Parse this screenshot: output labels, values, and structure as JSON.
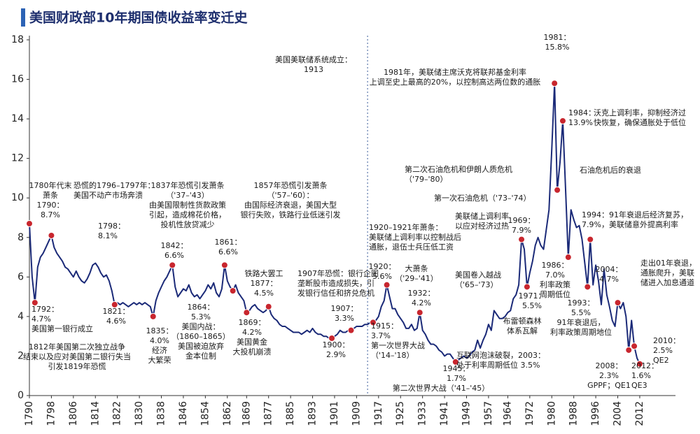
{
  "chart_data": {
    "type": "line",
    "title": "美国财政部10年期国债收益率变迁史",
    "color": "#1b2a78",
    "marker_color": "#c8262e",
    "xlim": [
      1790,
      2025
    ],
    "ylim": [
      0,
      18
    ],
    "yticks": [
      0,
      2,
      4,
      6,
      8,
      10,
      12,
      14,
      16,
      18
    ],
    "xticks": [
      1790,
      1798,
      1806,
      1814,
      1822,
      1830,
      1838,
      1846,
      1854,
      1862,
      1869,
      1877,
      1885,
      1893,
      1901,
      1909,
      1917,
      1925,
      1933,
      1941,
      1949,
      1957,
      1964,
      1972,
      1980,
      1988,
      1996,
      2004,
      2012
    ],
    "x": [
      1790,
      1791,
      1792,
      1793,
      1794,
      1795,
      1796,
      1797,
      1798,
      1799,
      1800,
      1801,
      1802,
      1803,
      1804,
      1805,
      1806,
      1807,
      1808,
      1809,
      1810,
      1811,
      1812,
      1813,
      1814,
      1815,
      1816,
      1817,
      1818,
      1819,
      1820,
      1821,
      1822,
      1823,
      1824,
      1825,
      1826,
      1827,
      1828,
      1829,
      1830,
      1831,
      1832,
      1833,
      1834,
      1835,
      1836,
      1837,
      1838,
      1839,
      1840,
      1841,
      1842,
      1843,
      1844,
      1845,
      1846,
      1847,
      1848,
      1849,
      1850,
      1851,
      1852,
      1853,
      1854,
      1855,
      1856,
      1857,
      1858,
      1859,
      1860,
      1861,
      1862,
      1863,
      1864,
      1865,
      1866,
      1867,
      1868,
      1869,
      1870,
      1871,
      1872,
      1873,
      1874,
      1875,
      1876,
      1877,
      1878,
      1879,
      1880,
      1881,
      1882,
      1883,
      1884,
      1885,
      1886,
      1887,
      1888,
      1889,
      1890,
      1891,
      1892,
      1893,
      1894,
      1895,
      1896,
      1897,
      1898,
      1899,
      1900,
      1901,
      1902,
      1903,
      1904,
      1905,
      1906,
      1907,
      1908,
      1909,
      1910,
      1911,
      1912,
      1913,
      1914,
      1915,
      1916,
      1917,
      1918,
      1919,
      1920,
      1921,
      1922,
      1923,
      1924,
      1925,
      1926,
      1927,
      1928,
      1929,
      1930,
      1931,
      1932,
      1933,
      1934,
      1935,
      1936,
      1937,
      1938,
      1939,
      1940,
      1941,
      1942,
      1943,
      1944,
      1945,
      1946,
      1947,
      1948,
      1949,
      1950,
      1951,
      1952,
      1953,
      1954,
      1955,
      1956,
      1957,
      1958,
      1959,
      1960,
      1961,
      1962,
      1963,
      1964,
      1965,
      1966,
      1967,
      1968,
      1969,
      1970,
      1971,
      1972,
      1973,
      1974,
      1975,
      1976,
      1977,
      1978,
      1979,
      1980,
      1981,
      1982,
      1983,
      1984,
      1985,
      1986,
      1987,
      1988,
      1989,
      1990,
      1991,
      1992,
      1993,
      1994,
      1995,
      1996,
      1997,
      1998,
      1999,
      2000,
      2001,
      2002,
      2003,
      2004,
      2005,
      2006,
      2007,
      2008,
      2009,
      2010,
      2011,
      2012
    ],
    "values": [
      8.7,
      6.0,
      4.7,
      6.5,
      7.0,
      7.2,
      7.5,
      7.8,
      8.1,
      7.5,
      7.2,
      7.0,
      6.8,
      6.5,
      6.4,
      6.2,
      6.0,
      6.3,
      6.0,
      5.8,
      5.7,
      5.9,
      6.2,
      6.6,
      6.7,
      6.5,
      6.2,
      6.0,
      6.1,
      5.8,
      5.3,
      4.6,
      4.7,
      4.6,
      4.7,
      4.6,
      4.5,
      4.6,
      4.7,
      4.6,
      4.7,
      4.6,
      4.7,
      4.6,
      4.5,
      4.0,
      4.8,
      5.2,
      5.5,
      5.8,
      6.0,
      6.3,
      6.6,
      5.5,
      5.0,
      5.2,
      5.4,
      5.3,
      5.6,
      5.2,
      5.0,
      5.1,
      4.9,
      5.1,
      5.3,
      5.6,
      5.4,
      5.7,
      5.2,
      5.0,
      5.4,
      6.6,
      5.8,
      5.5,
      5.3,
      5.6,
      5.2,
      5.0,
      4.8,
      4.2,
      4.3,
      4.5,
      4.6,
      4.4,
      4.3,
      4.2,
      4.3,
      4.5,
      4.1,
      3.9,
      3.8,
      3.6,
      3.5,
      3.5,
      3.4,
      3.3,
      3.2,
      3.2,
      3.2,
      3.1,
      3.2,
      3.3,
      3.2,
      3.4,
      3.2,
      3.1,
      3.1,
      3.0,
      3.0,
      2.9,
      2.9,
      3.0,
      3.1,
      3.3,
      3.2,
      3.2,
      3.3,
      3.3,
      3.4,
      3.5,
      3.5,
      3.5,
      3.6,
      3.6,
      3.7,
      3.7,
      3.8,
      4.0,
      4.5,
      4.8,
      5.6,
      5.0,
      4.4,
      4.4,
      4.1,
      3.9,
      3.7,
      3.4,
      3.4,
      3.6,
      3.3,
      3.4,
      4.2,
      3.3,
      3.1,
      2.8,
      2.6,
      2.6,
      2.5,
      2.3,
      2.2,
      2.0,
      2.1,
      2.1,
      1.9,
      1.7,
      1.8,
      1.9,
      2.0,
      1.9,
      2.0,
      2.2,
      2.3,
      2.8,
      2.4,
      2.8,
      3.1,
      3.6,
      3.3,
      4.3,
      4.1,
      3.9,
      3.9,
      4.0,
      4.2,
      4.3,
      4.9,
      5.1,
      5.6,
      7.9,
      7.4,
      5.5,
      6.2,
      6.8,
      7.6,
      8.0,
      7.6,
      7.4,
      8.4,
      9.4,
      12.5,
      15.8,
      10.4,
      11.8,
      13.9,
      10.5,
      7.0,
      9.4,
      8.9,
      8.5,
      8.6,
      7.9,
      6.7,
      5.5,
      7.9,
      5.6,
      6.6,
      5.8,
      4.6,
      6.4,
      5.1,
      4.5,
      3.8,
      3.5,
      4.7,
      4.4,
      4.7,
      4.0,
      2.3,
      3.8,
      2.5,
      1.9,
      1.6
    ],
    "annotations": [
      {
        "x": 1790,
        "y": 8.7,
        "lines": [
          "1780年代末",
          "萧条",
          "1790：",
          "8.7%"
        ]
      },
      {
        "x": 1792,
        "y": 4.7,
        "lines": [
          "1792：",
          "4.7%",
          "美国第一银行成立"
        ]
      },
      {
        "lines": [
          "恐慌的1796–1797年：",
          "美国不动产市场奔溃"
        ]
      },
      {
        "x": 1798,
        "y": 8.1,
        "lines": [
          "1798：",
          "8.1%"
        ]
      },
      {
        "lines": [
          "1812年美国第二次独立战争",
          "结束以及应对美国第二银行失当",
          "引发1819年恐慌"
        ]
      },
      {
        "x": 1821,
        "y": 4.6,
        "lines": [
          "1821：",
          "4.6%"
        ]
      },
      {
        "x": 1835,
        "y": 4.0,
        "lines": [
          "1835：",
          "4.0%",
          "经济",
          "大繁荣"
        ]
      },
      {
        "lines": [
          "1837年恐慌引发萧条",
          "（'37–'43）",
          "由美国限制性货款政策",
          "引起，造成棉花价格，",
          "投机性放贷减少"
        ]
      },
      {
        "x": 1842,
        "y": 6.6,
        "lines": [
          "1842：",
          "6.6%"
        ]
      },
      {
        "x": 1861,
        "y": 6.6,
        "lines": [
          "1861：",
          "6.6%"
        ]
      },
      {
        "x": 1864,
        "y": 5.3,
        "lines": [
          "1864：",
          "5.3%",
          "美国内战：",
          "（1860–1865）",
          "美国被迫放弃",
          "金本位制"
        ]
      },
      {
        "lines": [
          "1857年恐慌引发萧条",
          "（'57–'60）：",
          "由国际经济衰退，美国大型",
          "银行失败，铁路行业低迷引发"
        ]
      },
      {
        "x": 1869,
        "y": 4.2,
        "lines": [
          "1869：",
          "4.2%",
          "美国黄金",
          "大投机崩溃"
        ]
      },
      {
        "x": 1877,
        "y": 4.5,
        "lines": [
          "铁路大罢工",
          "1877：",
          "4.5%"
        ]
      },
      {
        "x": 1900,
        "y": 2.9,
        "lines": [
          "1900：",
          "2.9%"
        ]
      },
      {
        "lines": [
          "1907年恐慌：银行企图",
          "垄断股市造成损失，引",
          "发银行信任和挤兑危机"
        ]
      },
      {
        "x": 1907,
        "y": 3.3,
        "lines": [
          "1907：",
          "3.3%"
        ]
      },
      {
        "x": 1913,
        "vline": true,
        "lines": [
          "美国美联储系统成立：",
          "1913"
        ]
      },
      {
        "x": 1915,
        "y": 3.7,
        "lines": [
          "1915：",
          "3.7%",
          "第一次世界大战",
          "（'14–'18）"
        ]
      },
      {
        "x": 1920,
        "y": 5.6,
        "lines": [
          "1920：",
          "5.6%"
        ]
      },
      {
        "lines": [
          "1920–1921年萧条：",
          "美联储上调利率以控制战后",
          "通胀，退伍士兵压低工资"
        ]
      },
      {
        "lines": [
          "大萧条",
          "（'29–'41）"
        ]
      },
      {
        "x": 1932,
        "y": 4.2,
        "lines": [
          "1932：",
          "4.2%"
        ]
      },
      {
        "x": 1945,
        "y": 1.7,
        "lines": [
          "1945：",
          "1.7%"
        ]
      },
      {
        "lines": [
          "第二次世界大战（'41–'45）"
        ]
      },
      {
        "lines": [
          "互联网泡沫破裂，2003：",
          "处于利率周期低位 3.5%"
        ]
      },
      {
        "lines": [
          "第二次石油危机和伊朗人质危机",
          "（'79–'80）"
        ]
      },
      {
        "lines": [
          "第一次石油危机（'73–'74）"
        ]
      },
      {
        "x": 1969,
        "y": 7.9,
        "lines": [
          "1969：",
          "7.9%"
        ]
      },
      {
        "lines": [
          "美联储上调利率",
          "以应对经济过热"
        ]
      },
      {
        "lines": [
          "美国卷入越战",
          "（'65–'73）"
        ]
      },
      {
        "x": 1971,
        "y": 5.5,
        "lines": [
          "1971：",
          "5.5%"
        ]
      },
      {
        "lines": [
          "布雷顿森林",
          "体系瓦解"
        ]
      },
      {
        "x": 1981,
        "y": 15.8,
        "lines": [
          "1981：",
          "15.8%"
        ]
      },
      {
        "lines": [
          "1981年，美联储主席沃克将联邦基金利率",
          "上调至史上最高的20%，以控制高达两位数的通胀"
        ]
      },
      {
        "x": 1984,
        "y": 13.9,
        "lines": [
          "1984：",
          "13.9%"
        ]
      },
      {
        "lines": [
          "沃克上调利率，抑制经济过",
          "快恢复，确保通胀处于低位"
        ]
      },
      {
        "x": 1982,
        "y": 10.4,
        "lines": [
          "石油危机后的衰退"
        ]
      },
      {
        "x": 1986,
        "y": 7.0,
        "lines": [
          "1986：",
          "7.0%",
          "利率政策",
          "周期低位"
        ]
      },
      {
        "x": 1994,
        "y": 7.9,
        "lines": [
          "1994：91年衰退后经济复苏，",
          "7.9%，美联储意外提高利率"
        ]
      },
      {
        "x": 1993,
        "y": 5.5,
        "lines": [
          "1993：",
          "5.5%",
          "91年衰退后，",
          "利率政策周期地位"
        ]
      },
      {
        "x": 2004,
        "y": 4.7,
        "lines": [
          "2004：",
          "4.7%"
        ]
      },
      {
        "lines": [
          "走出01年衰退，",
          "通胀爬升，美联",
          "储进入加息通道"
        ]
      },
      {
        "x": 2008,
        "y": 2.3,
        "lines": [
          "2008：",
          "2.3%",
          "GPPF；QE1"
        ]
      },
      {
        "x": 2010,
        "y": 2.5,
        "lines": [
          "2010：",
          "2.5%",
          "QE2"
        ]
      },
      {
        "x": 2012,
        "y": 1.6,
        "lines": [
          "2012：",
          "1.6%",
          "QE3"
        ]
      }
    ]
  }
}
